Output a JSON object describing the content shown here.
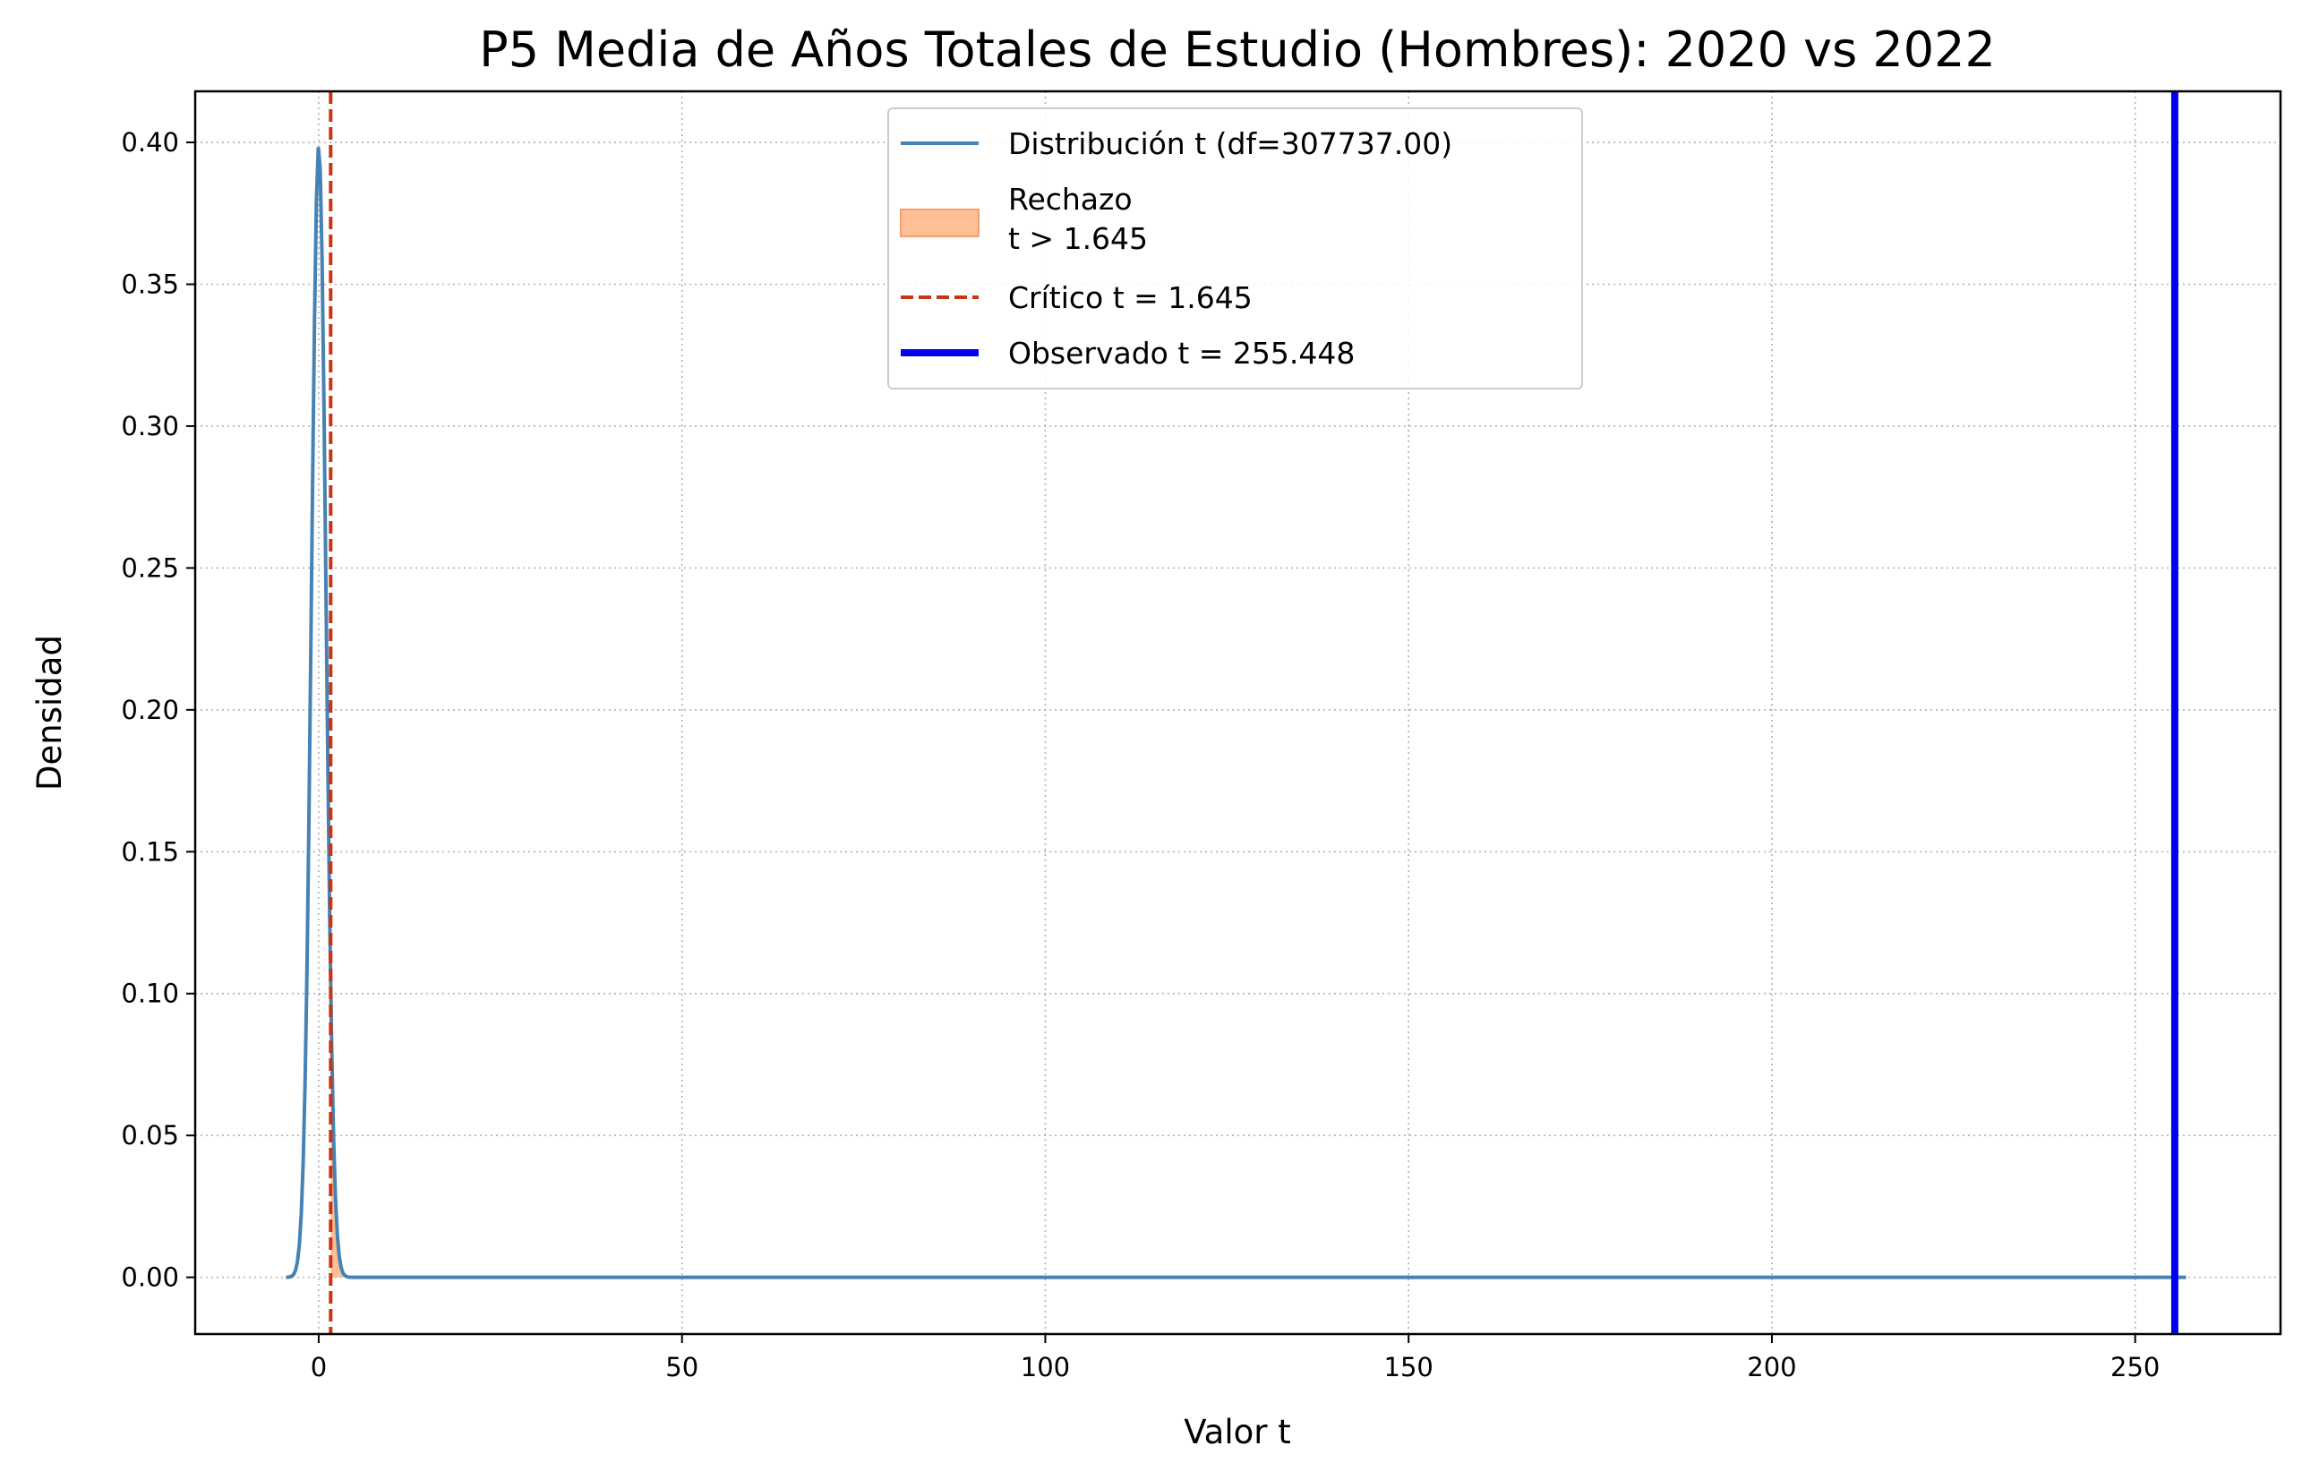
{
  "chart_data": {
    "type": "line",
    "title": "P5 Media de Años Totales de Estudio (Hombres): 2020 vs 2022",
    "xlabel": "Valor t",
    "ylabel": "Densidad",
    "xlim": [
      -17,
      270
    ],
    "ylim": [
      -0.02,
      0.418
    ],
    "xticks": [
      0,
      50,
      100,
      150,
      200,
      250
    ],
    "xtick_labels": [
      "0",
      "50",
      "100",
      "150",
      "200",
      "250"
    ],
    "yticks": [
      0.0,
      0.05,
      0.1,
      0.15,
      0.2,
      0.25,
      0.3,
      0.35,
      0.4
    ],
    "ytick_labels": [
      "0.00",
      "0.05",
      "0.10",
      "0.15",
      "0.20",
      "0.25",
      "0.30",
      "0.35",
      "0.40"
    ],
    "grid": true,
    "legend_position": "top-center",
    "df": 307737.0,
    "x_range": [
      -4.5,
      257
    ],
    "critical_t": 1.645,
    "observed_t": 255.448,
    "series": [
      {
        "name": "Distribución t (df=307737.00)",
        "kind": "t-density",
        "color": "#4682b4"
      },
      {
        "name": "Rechazo\nt > 1.645",
        "kind": "rejection-area",
        "color": "#ffb380"
      },
      {
        "name": "Crítico t = 1.645",
        "kind": "critical-line",
        "color": "#cc3311"
      },
      {
        "name": "Observado t = 255.448",
        "kind": "observed-line",
        "color": "#0000ee"
      }
    ],
    "legend": [
      {
        "lines": [
          "Distribución t (df=307737.00)"
        ]
      },
      {
        "lines": [
          "Rechazo",
          "t > 1.645"
        ]
      },
      {
        "lines": [
          "Crítico t = 1.645"
        ]
      },
      {
        "lines": [
          "Observado t = 255.448"
        ]
      }
    ]
  }
}
